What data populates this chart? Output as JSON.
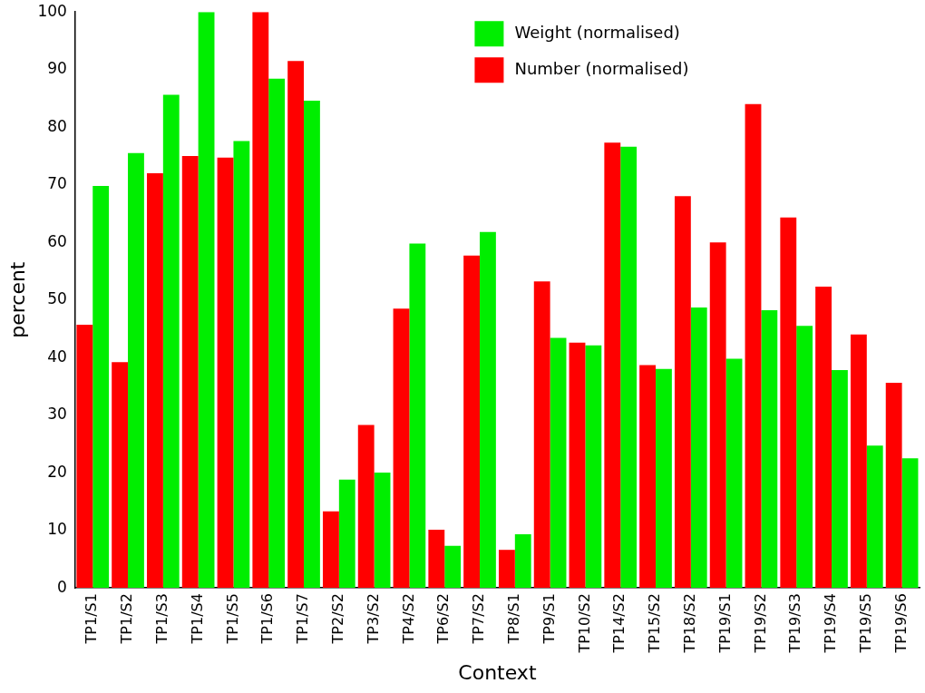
{
  "chart_data": {
    "type": "bar",
    "xlabel": "Context",
    "ylabel": "percent",
    "categories": [
      "TP1/S1",
      "TP1/S2",
      "TP1/S3",
      "TP1/S4",
      "TP1/S5",
      "TP1/S6",
      "TP1/S7",
      "TP2/S2",
      "TP3/S2",
      "TP4/S2",
      "TP6/S2",
      "TP7/S2",
      "TP8/S1",
      "TP9/S1",
      "TP10/S2",
      "TP14/S2",
      "TP15/S2",
      "TP18/S2",
      "TP19/S1",
      "TP19/S2",
      "TP19/S3",
      "TP19/S4",
      "TP19/S5",
      "TP19/S6"
    ],
    "series": [
      {
        "name": "Number (normalised)",
        "color": "#ff0000",
        "values": [
          45.7,
          39.2,
          72,
          75,
          74.7,
          100,
          91.5,
          13.3,
          28.3,
          48.5,
          10.1,
          57.7,
          6.6,
          53.2,
          42.6,
          77.3,
          38.7,
          68,
          60,
          84,
          64.3,
          52.3,
          44,
          35.6
        ]
      },
      {
        "name": "Weight (normalised)",
        "color": "#00ee00",
        "values": [
          69.8,
          75.5,
          85.6,
          100,
          77.6,
          88.4,
          84.6,
          18.8,
          20,
          59.8,
          7.3,
          61.8,
          9.3,
          43.4,
          42.1,
          76.6,
          38,
          48.7,
          39.8,
          48.2,
          45.5,
          37.8,
          24.7,
          22.5
        ]
      }
    ],
    "ylim": [
      0,
      100
    ],
    "yticks": [
      0,
      10,
      20,
      30,
      40,
      50,
      60,
      70,
      80,
      90,
      100
    ],
    "grid": false,
    "legend": "top"
  }
}
